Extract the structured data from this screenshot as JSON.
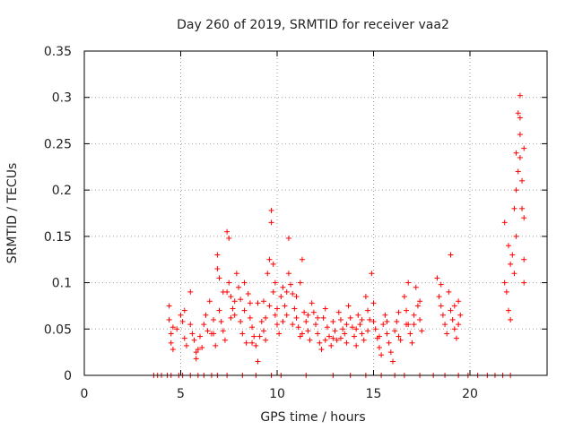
{
  "chart_data": {
    "type": "scatter",
    "title": "Day 260 of 2019, SRMTID for receiver vaa2",
    "xlabel": "GPS time / hours",
    "ylabel": "SRMTID / TECUs",
    "xlim": [
      0,
      24
    ],
    "ylim": [
      0,
      0.35
    ],
    "x_ticks": [
      0,
      5,
      10,
      15,
      20
    ],
    "x_tick_labels": [
      "0",
      "5",
      "10",
      "15",
      "20"
    ],
    "y_ticks": [
      0,
      0.05,
      0.1,
      0.15,
      0.2,
      0.25,
      0.3,
      0.35
    ],
    "y_tick_labels": [
      "0",
      "0.05",
      "0.1",
      "0.15",
      "0.2",
      "0.25",
      "0.3",
      "0.35"
    ],
    "grid": true,
    "marker": "+",
    "color": "#ff0000",
    "series": [
      {
        "name": "SRMTID",
        "points": [
          [
            3.6,
            0
          ],
          [
            3.8,
            0
          ],
          [
            4.0,
            0
          ],
          [
            4.3,
            0
          ],
          [
            4.5,
            0
          ],
          [
            4.9,
            0
          ],
          [
            5.1,
            0
          ],
          [
            5.5,
            0
          ],
          [
            5.9,
            0
          ],
          [
            6.2,
            0
          ],
          [
            6.6,
            0
          ],
          [
            6.9,
            0
          ],
          [
            7.4,
            0
          ],
          [
            8.2,
            0
          ],
          [
            8.9,
            0
          ],
          [
            9.7,
            0
          ],
          [
            10.2,
            0
          ],
          [
            11.5,
            0
          ],
          [
            12.9,
            0
          ],
          [
            13.8,
            0
          ],
          [
            14.6,
            0
          ],
          [
            15.4,
            0
          ],
          [
            16.1,
            0
          ],
          [
            16.6,
            0
          ],
          [
            17.4,
            0
          ],
          [
            18.1,
            0
          ],
          [
            18.7,
            0
          ],
          [
            19.4,
            0
          ],
          [
            19.9,
            0
          ],
          [
            20.4,
            0
          ],
          [
            20.9,
            0
          ],
          [
            21.3,
            0
          ],
          [
            21.7,
            0
          ],
          [
            22.1,
            0
          ],
          [
            4.4,
            0.075
          ],
          [
            4.4,
            0.06
          ],
          [
            4.5,
            0.045
          ],
          [
            4.5,
            0.035
          ],
          [
            4.6,
            0.028
          ],
          [
            4.6,
            0.052
          ],
          [
            4.8,
            0.05
          ],
          [
            5.0,
            0.065
          ],
          [
            5.1,
            0.058
          ],
          [
            5.2,
            0.04
          ],
          [
            5.3,
            0.032
          ],
          [
            5.5,
            0.09
          ],
          [
            5.5,
            0.055
          ],
          [
            5.6,
            0.045
          ],
          [
            5.7,
            0.038
          ],
          [
            5.8,
            0.025
          ],
          [
            5.8,
            0.018
          ],
          [
            5.9,
            0.028
          ],
          [
            6.0,
            0.042
          ],
          [
            6.2,
            0.055
          ],
          [
            6.3,
            0.065
          ],
          [
            6.4,
            0.048
          ],
          [
            6.5,
            0.08
          ],
          [
            6.6,
            0.045
          ],
          [
            6.7,
            0.06
          ],
          [
            6.8,
            0.032
          ],
          [
            6.9,
            0.13
          ],
          [
            6.9,
            0.115
          ],
          [
            7.0,
            0.105
          ],
          [
            7.0,
            0.07
          ],
          [
            7.1,
            0.058
          ],
          [
            7.2,
            0.048
          ],
          [
            7.3,
            0.038
          ],
          [
            7.4,
            0.09
          ],
          [
            7.4,
            0.155
          ],
          [
            7.5,
            0.148
          ],
          [
            7.5,
            0.1
          ],
          [
            7.6,
            0.085
          ],
          [
            7.7,
            0.072
          ],
          [
            7.8,
            0.065
          ],
          [
            7.9,
            0.11
          ],
          [
            8.0,
            0.095
          ],
          [
            8.1,
            0.058
          ],
          [
            8.2,
            0.045
          ],
          [
            8.3,
            0.07
          ],
          [
            8.4,
            0.035
          ],
          [
            8.5,
            0.088
          ],
          [
            8.6,
            0.062
          ],
          [
            8.7,
            0.052
          ],
          [
            8.8,
            0.042
          ],
          [
            8.9,
            0.032
          ],
          [
            9.0,
            0.078
          ],
          [
            9.0,
            0.015
          ],
          [
            9.2,
            0.058
          ],
          [
            9.3,
            0.048
          ],
          [
            9.4,
            0.038
          ],
          [
            9.5,
            0.11
          ],
          [
            9.6,
            0.125
          ],
          [
            9.6,
            0.075
          ],
          [
            9.7,
            0.165
          ],
          [
            9.7,
            0.178
          ],
          [
            9.8,
            0.12
          ],
          [
            9.8,
            0.09
          ],
          [
            9.9,
            0.065
          ],
          [
            10.0,
            0.055
          ],
          [
            10.1,
            0.045
          ],
          [
            10.2,
            0.085
          ],
          [
            10.3,
            0.095
          ],
          [
            10.4,
            0.075
          ],
          [
            10.5,
            0.065
          ],
          [
            10.6,
            0.148
          ],
          [
            10.6,
            0.11
          ],
          [
            10.7,
            0.098
          ],
          [
            10.8,
            0.088
          ],
          [
            10.9,
            0.072
          ],
          [
            11.0,
            0.062
          ],
          [
            11.1,
            0.052
          ],
          [
            11.2,
            0.042
          ],
          [
            11.3,
            0.125
          ],
          [
            11.4,
            0.068
          ],
          [
            11.5,
            0.058
          ],
          [
            11.6,
            0.048
          ],
          [
            11.7,
            0.038
          ],
          [
            11.8,
            0.078
          ],
          [
            11.9,
            0.068
          ],
          [
            12.0,
            0.055
          ],
          [
            12.1,
            0.045
          ],
          [
            12.2,
            0.035
          ],
          [
            12.3,
            0.028
          ],
          [
            12.4,
            0.062
          ],
          [
            12.5,
            0.072
          ],
          [
            12.6,
            0.052
          ],
          [
            12.7,
            0.042
          ],
          [
            12.8,
            0.032
          ],
          [
            12.9,
            0.058
          ],
          [
            13.0,
            0.048
          ],
          [
            13.1,
            0.038
          ],
          [
            13.2,
            0.068
          ],
          [
            13.3,
            0.06
          ],
          [
            13.4,
            0.05
          ],
          [
            13.5,
            0.045
          ],
          [
            13.6,
            0.035
          ],
          [
            13.7,
            0.075
          ],
          [
            13.8,
            0.062
          ],
          [
            13.9,
            0.052
          ],
          [
            14.0,
            0.042
          ],
          [
            14.1,
            0.032
          ],
          [
            14.2,
            0.065
          ],
          [
            14.3,
            0.055
          ],
          [
            14.4,
            0.045
          ],
          [
            14.5,
            0.038
          ],
          [
            14.6,
            0.085
          ],
          [
            14.7,
            0.07
          ],
          [
            14.8,
            0.06
          ],
          [
            14.9,
            0.11
          ],
          [
            15.0,
            0.078
          ],
          [
            15.1,
            0.05
          ],
          [
            15.2,
            0.04
          ],
          [
            15.3,
            0.03
          ],
          [
            15.4,
            0.022
          ],
          [
            15.5,
            0.055
          ],
          [
            15.6,
            0.065
          ],
          [
            15.7,
            0.045
          ],
          [
            15.8,
            0.035
          ],
          [
            15.9,
            0.025
          ],
          [
            16.0,
            0.015
          ],
          [
            16.1,
            0.048
          ],
          [
            16.2,
            0.058
          ],
          [
            16.3,
            0.068
          ],
          [
            16.4,
            0.038
          ],
          [
            16.6,
            0.085
          ],
          [
            16.7,
            0.07
          ],
          [
            16.8,
            0.1
          ],
          [
            16.8,
            0.055
          ],
          [
            16.9,
            0.045
          ],
          [
            17.0,
            0.035
          ],
          [
            17.1,
            0.065
          ],
          [
            17.2,
            0.095
          ],
          [
            17.3,
            0.075
          ],
          [
            17.4,
            0.06
          ],
          [
            17.5,
            0.048
          ],
          [
            18.3,
            0.105
          ],
          [
            18.4,
            0.085
          ],
          [
            18.5,
            0.075
          ],
          [
            18.6,
            0.065
          ],
          [
            18.7,
            0.055
          ],
          [
            18.8,
            0.045
          ],
          [
            18.9,
            0.09
          ],
          [
            19.0,
            0.13
          ],
          [
            19.0,
            0.07
          ],
          [
            19.1,
            0.06
          ],
          [
            19.2,
            0.05
          ],
          [
            19.3,
            0.04
          ],
          [
            19.4,
            0.08
          ],
          [
            19.5,
            0.065
          ],
          [
            21.8,
            0.165
          ],
          [
            21.8,
            0.1
          ],
          [
            21.9,
            0.09
          ],
          [
            22.0,
            0.14
          ],
          [
            22.0,
            0.07
          ],
          [
            22.1,
            0.12
          ],
          [
            22.1,
            0.06
          ],
          [
            22.2,
            0.13
          ],
          [
            22.3,
            0.18
          ],
          [
            22.3,
            0.11
          ],
          [
            22.4,
            0.24
          ],
          [
            22.4,
            0.2
          ],
          [
            22.4,
            0.15
          ],
          [
            22.5,
            0.283
          ],
          [
            22.5,
            0.22
          ],
          [
            22.6,
            0.302
          ],
          [
            22.6,
            0.278
          ],
          [
            22.6,
            0.26
          ],
          [
            22.6,
            0.235
          ],
          [
            22.7,
            0.21
          ],
          [
            22.7,
            0.18
          ],
          [
            22.8,
            0.245
          ],
          [
            22.8,
            0.17
          ],
          [
            22.8,
            0.125
          ],
          [
            22.8,
            0.1
          ],
          [
            7.2,
            0.09
          ],
          [
            7.6,
            0.062
          ],
          [
            8.1,
            0.082
          ],
          [
            8.6,
            0.078
          ],
          [
            9.1,
            0.042
          ],
          [
            9.4,
            0.062
          ],
          [
            10.0,
            0.072
          ],
          [
            10.3,
            0.058
          ],
          [
            10.8,
            0.055
          ],
          [
            11.0,
            0.085
          ],
          [
            11.3,
            0.045
          ],
          [
            11.6,
            0.065
          ],
          [
            12.1,
            0.062
          ],
          [
            12.5,
            0.038
          ],
          [
            12.9,
            0.04
          ],
          [
            13.3,
            0.04
          ],
          [
            13.6,
            0.055
          ],
          [
            14.1,
            0.05
          ],
          [
            14.4,
            0.06
          ],
          [
            14.7,
            0.048
          ],
          [
            15.0,
            0.058
          ],
          [
            15.3,
            0.042
          ],
          [
            15.7,
            0.058
          ],
          [
            16.3,
            0.042
          ],
          [
            16.7,
            0.055
          ],
          [
            17.1,
            0.055
          ],
          [
            17.4,
            0.08
          ],
          [
            18.5,
            0.098
          ],
          [
            19.2,
            0.075
          ],
          [
            19.4,
            0.055
          ],
          [
            5.2,
            0.07
          ],
          [
            6.1,
            0.03
          ],
          [
            6.7,
            0.045
          ],
          [
            7.8,
            0.08
          ],
          [
            8.3,
            0.1
          ],
          [
            8.7,
            0.035
          ],
          [
            9.3,
            0.08
          ],
          [
            9.9,
            0.1
          ],
          [
            10.5,
            0.09
          ],
          [
            11.2,
            0.1
          ]
        ]
      }
    ]
  }
}
